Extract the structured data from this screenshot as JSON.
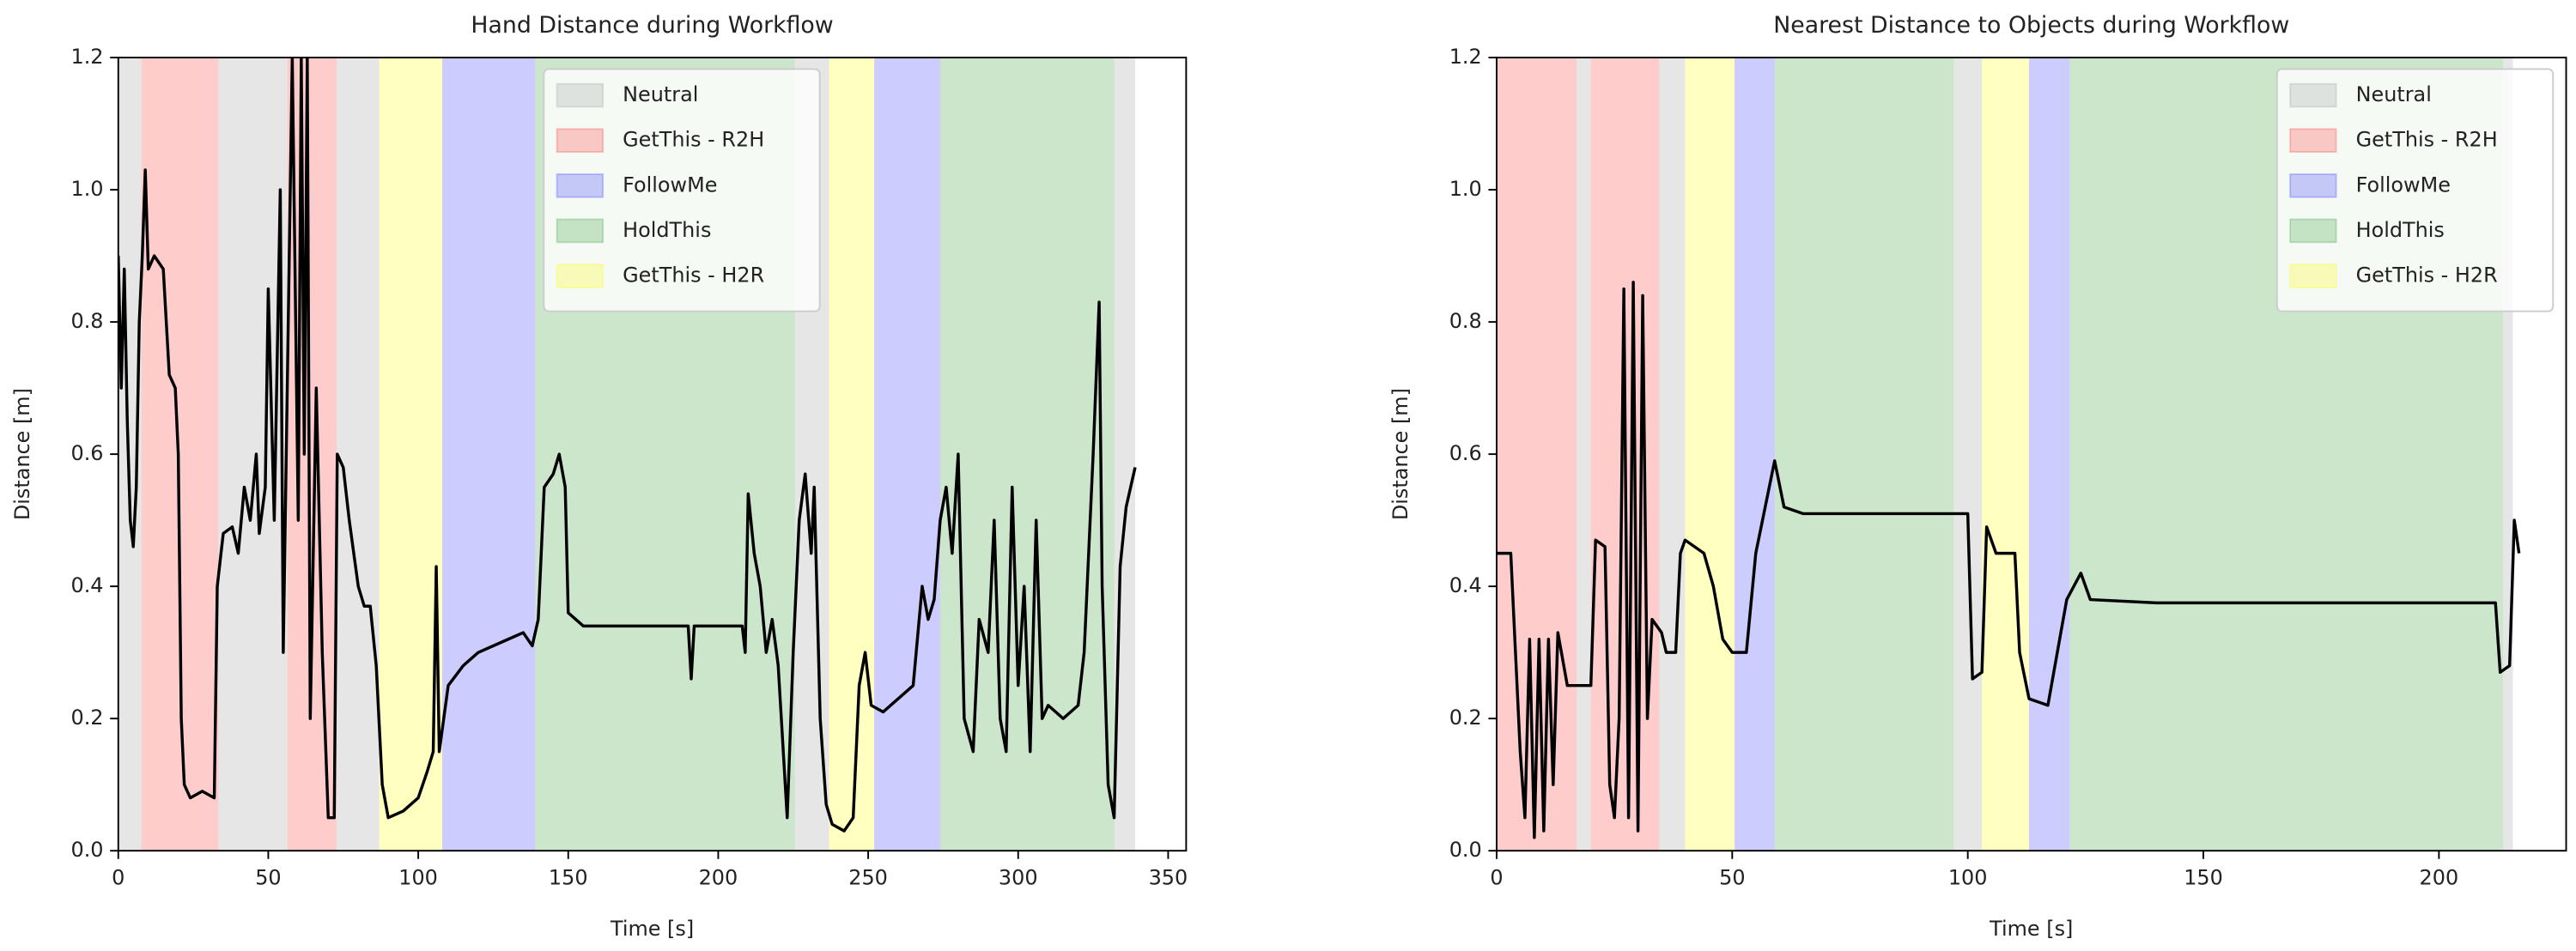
{
  "chart_data": [
    {
      "type": "line",
      "title": "Hand Distance during Workflow",
      "xlabel": "Time [s]",
      "ylabel": "Distance [m]",
      "xlim": [
        0,
        356
      ],
      "ylim": [
        0,
        1.2
      ],
      "xticks": [
        0,
        50,
        100,
        150,
        200,
        250,
        300,
        350
      ],
      "yticks": [
        {
          "value": 0,
          "label": "0.0"
        },
        0.2,
        0.4,
        0.6,
        0.8,
        {
          "value": 1,
          "label": "1.0"
        },
        1.2
      ],
      "legend": "upper center",
      "phases": [
        {
          "name": "Neutral",
          "color": "gray",
          "alpha": 0.2,
          "spans": [
            [
              0,
              7.7
            ],
            [
              33.4,
              56.4
            ],
            [
              72.8,
              87
            ],
            [
              225.6,
              237
            ],
            [
              332,
              339
            ]
          ]
        },
        {
          "name": "GetThis - R2H",
          "color": "red",
          "alpha": 0.2,
          "spans": [
            [
              7.7,
              33.4
            ],
            [
              56.4,
              72.8
            ]
          ]
        },
        {
          "name": "FollowMe",
          "color": "blue",
          "alpha": 0.2,
          "spans": [
            [
              108,
              139
            ],
            [
              252,
              274
            ]
          ]
        },
        {
          "name": "HoldThis",
          "color": "green",
          "alpha": 0.2,
          "spans": [
            [
              139,
              225.6
            ],
            [
              274,
              332
            ]
          ]
        },
        {
          "name": "GetThis - H2R",
          "color": "yellow",
          "alpha": 0.25,
          "spans": [
            [
              87,
              108
            ],
            [
              237,
              252
            ]
          ]
        }
      ],
      "x": [
        0,
        1,
        2,
        3,
        4,
        5,
        6,
        7,
        8,
        9,
        10,
        12,
        15,
        17,
        19,
        20,
        21,
        22,
        24,
        28,
        32,
        33,
        35,
        38,
        40,
        42,
        44,
        46,
        47,
        49,
        50,
        52,
        54,
        55,
        57,
        58,
        60,
        61,
        62,
        63,
        64,
        66,
        68,
        70,
        72,
        73,
        75,
        77,
        80,
        82,
        84,
        86,
        88,
        90,
        95,
        100,
        103,
        105,
        106,
        107,
        110,
        115,
        120,
        130,
        135,
        138,
        140,
        142,
        145,
        147,
        149,
        150,
        155,
        170,
        190,
        191,
        192,
        208,
        209,
        210,
        212,
        214,
        216,
        218,
        220,
        223,
        225,
        227,
        229,
        231,
        232,
        234,
        236,
        238,
        242,
        245,
        247,
        249,
        251,
        255,
        260,
        265,
        268,
        270,
        272,
        274,
        276,
        278,
        280,
        282,
        285,
        287,
        290,
        292,
        294,
        296,
        298,
        300,
        302,
        304,
        306,
        308,
        310,
        315,
        320,
        322,
        325,
        327,
        328,
        330,
        332,
        334,
        336,
        338,
        339
      ],
      "series": [
        {
          "color": "black",
          "values": [
            0.9,
            0.7,
            0.88,
            0.65,
            0.5,
            0.46,
            0.55,
            0.8,
            0.9,
            1.03,
            0.88,
            0.9,
            0.88,
            0.72,
            0.7,
            0.6,
            0.2,
            0.1,
            0.08,
            0.09,
            0.08,
            0.4,
            0.48,
            0.49,
            0.45,
            0.55,
            0.5,
            0.6,
            0.48,
            0.55,
            0.85,
            0.5,
            1.0,
            0.3,
            0.9,
            1.2,
            0.5,
            1.2,
            0.6,
            1.2,
            0.2,
            0.7,
            0.3,
            0.05,
            0.05,
            0.6,
            0.58,
            0.5,
            0.4,
            0.37,
            0.37,
            0.28,
            0.1,
            0.05,
            0.06,
            0.08,
            0.12,
            0.15,
            0.43,
            0.15,
            0.25,
            0.28,
            0.3,
            0.32,
            0.33,
            0.31,
            0.35,
            0.55,
            0.57,
            0.6,
            0.55,
            0.36,
            0.34,
            0.34,
            0.34,
            0.26,
            0.34,
            0.34,
            0.3,
            0.54,
            0.45,
            0.4,
            0.3,
            0.35,
            0.28,
            0.05,
            0.3,
            0.5,
            0.57,
            0.45,
            0.55,
            0.2,
            0.07,
            0.04,
            0.03,
            0.05,
            0.25,
            0.3,
            0.22,
            0.21,
            0.23,
            0.25,
            0.4,
            0.35,
            0.38,
            0.5,
            0.55,
            0.45,
            0.6,
            0.2,
            0.15,
            0.35,
            0.3,
            0.5,
            0.2,
            0.15,
            0.55,
            0.25,
            0.4,
            0.15,
            0.5,
            0.2,
            0.22,
            0.2,
            0.22,
            0.3,
            0.6,
            0.83,
            0.4,
            0.1,
            0.05,
            0.43,
            0.52,
            0.56,
            0.58
          ]
        }
      ]
    },
    {
      "type": "line",
      "title": "Nearest Distance to Objects during Workflow",
      "xlabel": "Time [s]",
      "ylabel": "Distance [m]",
      "xlim": [
        0,
        227
      ],
      "ylim": [
        0,
        1.2
      ],
      "xticks": [
        0,
        50,
        100,
        150,
        200
      ],
      "yticks": [
        {
          "value": 0,
          "label": "0.0"
        },
        0.2,
        0.4,
        0.6,
        0.8,
        {
          "value": 1,
          "label": "1.0"
        },
        1.2
      ],
      "legend": "upper right",
      "phases": [
        {
          "name": "Neutral",
          "color": "gray",
          "alpha": 0.2,
          "spans": [
            [
              17,
              20
            ],
            [
              34.5,
              40
            ],
            [
              97,
              103
            ],
            [
              213.6,
              215.7
            ]
          ]
        },
        {
          "name": "GetThis - R2H",
          "color": "red",
          "alpha": 0.2,
          "spans": [
            [
              0,
              17
            ],
            [
              20,
              34.5
            ]
          ]
        },
        {
          "name": "FollowMe",
          "color": "blue",
          "alpha": 0.2,
          "spans": [
            [
              50.5,
              59
            ],
            [
              113,
              121.6
            ]
          ]
        },
        {
          "name": "HoldThis",
          "color": "green",
          "alpha": 0.2,
          "spans": [
            [
              59,
              97
            ],
            [
              121.6,
              213.6
            ]
          ]
        },
        {
          "name": "GetThis - H2R",
          "color": "yellow",
          "alpha": 0.25,
          "spans": [
            [
              40,
              50.5
            ],
            [
              103,
              113
            ]
          ]
        }
      ],
      "x": [
        0,
        3,
        4,
        5,
        6,
        7,
        8,
        9,
        10,
        11,
        12,
        13,
        15,
        20,
        21,
        23,
        24,
        25,
        26,
        27,
        28,
        29,
        30,
        31,
        32,
        33,
        35,
        36,
        38,
        39,
        40,
        44,
        46,
        48,
        50,
        53,
        55,
        57,
        59,
        61,
        65,
        100,
        101,
        103,
        104,
        106,
        110,
        111,
        113,
        117,
        119,
        121,
        124,
        126,
        140,
        200,
        212,
        213,
        215,
        216,
        217
      ],
      "series": [
        {
          "color": "black",
          "values": [
            0.45,
            0.45,
            0.3,
            0.15,
            0.05,
            0.32,
            0.02,
            0.32,
            0.03,
            0.32,
            0.1,
            0.33,
            0.25,
            0.25,
            0.47,
            0.46,
            0.1,
            0.05,
            0.2,
            0.85,
            0.05,
            0.86,
            0.03,
            0.84,
            0.2,
            0.35,
            0.33,
            0.3,
            0.3,
            0.45,
            0.47,
            0.45,
            0.4,
            0.32,
            0.3,
            0.3,
            0.45,
            0.52,
            0.59,
            0.52,
            0.51,
            0.51,
            0.26,
            0.27,
            0.49,
            0.45,
            0.45,
            0.3,
            0.23,
            0.22,
            0.3,
            0.38,
            0.42,
            0.38,
            0.375,
            0.375,
            0.375,
            0.27,
            0.28,
            0.5,
            0.45
          ]
        }
      ]
    }
  ]
}
